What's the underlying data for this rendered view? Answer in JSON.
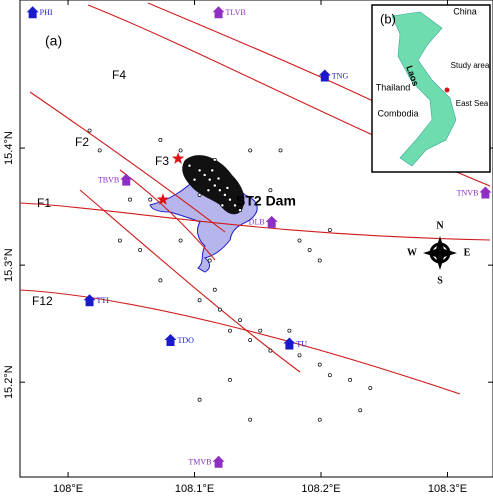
{
  "map": {
    "panel_label": "(a)",
    "xlim": [
      107.962,
      108.336
    ],
    "ylim": [
      15.119,
      15.5265
    ],
    "xticks": [
      {
        "value": 108,
        "label": "108°E"
      },
      {
        "value": 108.1,
        "label": "108.1°E"
      },
      {
        "value": 108.2,
        "label": "108.2°E"
      },
      {
        "value": 108.3,
        "label": "108.3°E"
      }
    ],
    "yticks": [
      {
        "value": 15.2,
        "label": "15.2°N"
      },
      {
        "value": 15.3,
        "label": "15.3°N"
      },
      {
        "value": 15.4,
        "label": "15.4°N"
      }
    ],
    "fault_labels": [
      "F1",
      "F2",
      "F3",
      "F4",
      "F12"
    ],
    "dam_label": "ST2 Dam",
    "stations": [
      {
        "name": "PHI",
        "lon": 107.972,
        "lat": 15.516,
        "color": "#1a1acc"
      },
      {
        "name": "TLVB",
        "lon": 108.119,
        "lat": 15.516,
        "color": "#8e2fc4"
      },
      {
        "name": "TNG",
        "lon": 108.203,
        "lat": 15.462,
        "color": "#1a1acc"
      },
      {
        "name": "TBVB",
        "lon": 108.046,
        "lat": 15.373,
        "color": "#8e2fc4"
      },
      {
        "name": "TNVB",
        "lon": 108.33,
        "lat": 15.362,
        "color": "#8e2fc4"
      },
      {
        "name": "DLB",
        "lon": 108.161,
        "lat": 15.337,
        "color": "#8e2fc4"
      },
      {
        "name": "TTI",
        "lon": 108.017,
        "lat": 15.27,
        "color": "#1a1acc"
      },
      {
        "name": "TDO",
        "lon": 108.081,
        "lat": 15.236,
        "color": "#1a1acc"
      },
      {
        "name": "TU",
        "lon": 108.175,
        "lat": 15.233,
        "color": "#1a1acc"
      },
      {
        "name": "TMVB",
        "lon": 108.119,
        "lat": 15.132,
        "color": "#8e2fc4"
      }
    ],
    "main_shocks": [
      [
        108.087,
        15.391
      ],
      [
        108.075,
        15.356
      ]
    ],
    "earthquakes": [
      [
        108.104,
        15.381
      ],
      [
        108.108,
        15.377
      ],
      [
        108.112,
        15.373
      ],
      [
        108.116,
        15.368
      ],
      [
        108.12,
        15.364
      ],
      [
        108.124,
        15.36
      ],
      [
        108.128,
        15.356
      ],
      [
        108.114,
        15.381
      ],
      [
        108.1,
        15.373
      ],
      [
        108.119,
        15.374
      ],
      [
        108.126,
        15.366
      ],
      [
        108.132,
        15.351
      ],
      [
        108.136,
        15.347
      ],
      [
        108.104,
        15.36
      ],
      [
        108.111,
        15.364
      ],
      [
        108.122,
        15.351
      ],
      [
        108.096,
        15.385
      ],
      [
        108.116,
        15.39
      ],
      [
        108.089,
        15.398
      ],
      [
        108.073,
        15.407
      ],
      [
        108.112,
        15.304
      ],
      [
        108.116,
        15.279
      ],
      [
        108.12,
        15.262
      ],
      [
        108.128,
        15.244
      ],
      [
        108.144,
        15.236
      ],
      [
        108.16,
        15.227
      ],
      [
        108.183,
        15.223
      ],
      [
        108.199,
        15.215
      ],
      [
        108.207,
        15.206
      ],
      [
        108.223,
        15.202
      ],
      [
        108.239,
        15.195
      ],
      [
        108.104,
        15.27
      ],
      [
        108.136,
        15.253
      ],
      [
        108.152,
        15.244
      ],
      [
        108.175,
        15.244
      ],
      [
        108.191,
        15.313
      ],
      [
        108.199,
        15.304
      ],
      [
        108.065,
        15.356
      ],
      [
        108.049,
        15.356
      ],
      [
        108.041,
        15.321
      ],
      [
        108.057,
        15.313
      ],
      [
        108.025,
        15.398
      ],
      [
        108.017,
        15.415
      ],
      [
        108.144,
        15.398
      ],
      [
        108.168,
        15.398
      ],
      [
        108.16,
        15.364
      ],
      [
        108.183,
        15.321
      ],
      [
        108.207,
        15.33
      ],
      [
        108.104,
        15.185
      ],
      [
        108.128,
        15.202
      ],
      [
        108.144,
        15.168
      ],
      [
        108.199,
        15.168
      ],
      [
        108.231,
        15.176
      ],
      [
        108.073,
        15.287
      ],
      [
        108.089,
        15.321
      ]
    ],
    "compass": {
      "n": "N",
      "s": "S",
      "e": "E",
      "w": "W"
    }
  },
  "inset": {
    "panel_label": "(b)",
    "labels": {
      "china": "China",
      "laos": "Laos",
      "thailand": "Thailand",
      "cambodia": "Combodia",
      "study_area": "Study area",
      "east_sea": "East Sea"
    }
  }
}
